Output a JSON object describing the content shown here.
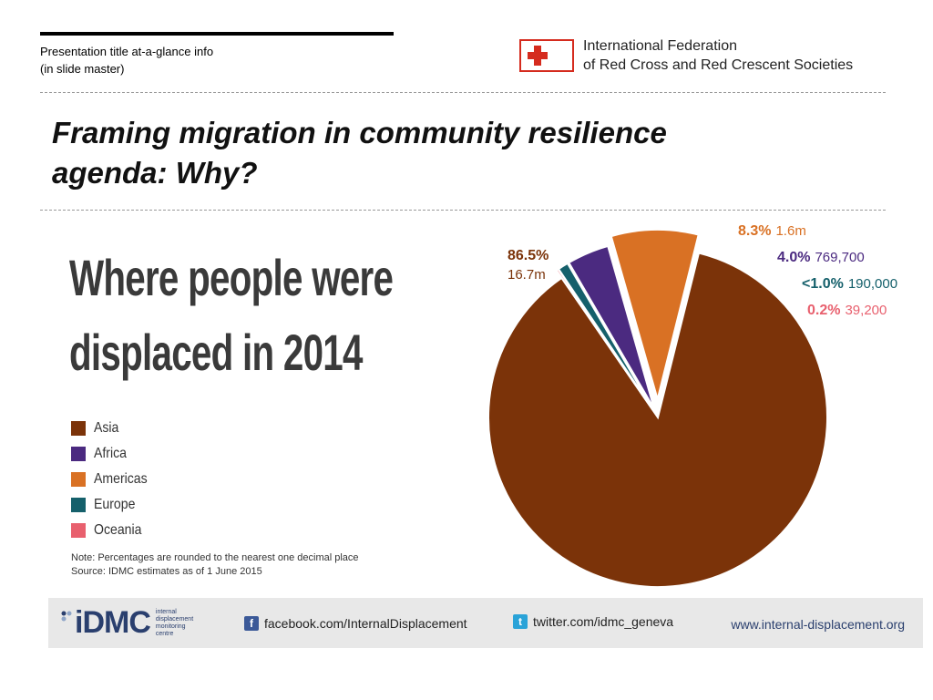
{
  "header": {
    "presentation_line1": "Presentation title at-a-glance info",
    "presentation_line2": "(in slide master)",
    "org_line1": "International Federation",
    "org_line2": "of Red Cross and Red Crescent Societies"
  },
  "slide": {
    "title_line1": "Framing migration in community resilience",
    "title_line2": "agenda: Why?"
  },
  "infographic": {
    "headline_line1": "Where people were",
    "headline_line2": "displaced in 2014",
    "note_line1": "Note: Percentages are rounded to the nearest one decimal place",
    "note_line2": "Source: IDMC estimates as of 1 June 2015"
  },
  "footer": {
    "idmc_word": "iDMC",
    "idmc_sub1": "internal",
    "idmc_sub2": "displacement",
    "idmc_sub3": "monitoring",
    "idmc_sub4": "centre",
    "facebook": "facebook.com/InternalDisplacement",
    "twitter": "twitter.com/idmc_geneva",
    "website": "www.internal-displacement.org"
  },
  "colors": {
    "asia": "#7b3309",
    "africa": "#4b2a80",
    "americas": "#d97124",
    "europe": "#15606b",
    "oceania": "#e8606e",
    "ifrc_red": "#d52b1e"
  },
  "chart_data": {
    "type": "pie",
    "title": "Where people were displaced in 2014",
    "legend": [
      "Asia",
      "Africa",
      "Americas",
      "Europe",
      "Oceania"
    ],
    "legend_position": "left",
    "slices": [
      {
        "name": "Asia",
        "value": 86.5,
        "pct_label": "86.5%",
        "count_label": "16.7m",
        "color": "#7b3309"
      },
      {
        "name": "Americas",
        "value": 8.3,
        "pct_label": "8.3%",
        "count_label": "1.6m",
        "color": "#d97124"
      },
      {
        "name": "Africa",
        "value": 4.0,
        "pct_label": "4.0%",
        "count_label": "769,700",
        "color": "#4b2a80"
      },
      {
        "name": "Europe",
        "value": 1.0,
        "pct_label": "<1.0%",
        "count_label": "190,000",
        "color": "#15606b"
      },
      {
        "name": "Oceania",
        "value": 0.2,
        "pct_label": "0.2%",
        "count_label": "39,200",
        "color": "#e8606e"
      }
    ]
  }
}
